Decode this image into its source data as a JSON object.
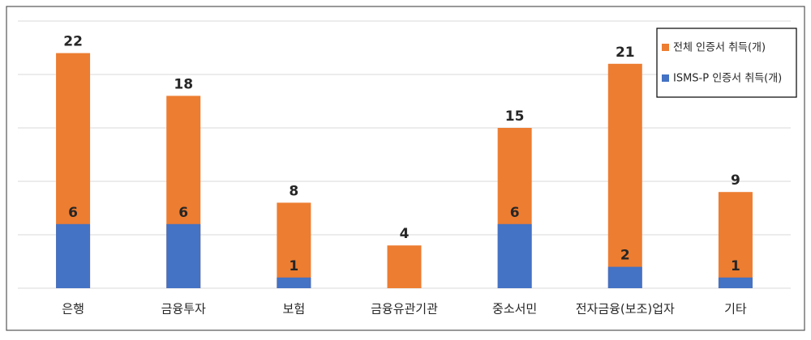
{
  "chart_data": {
    "type": "bar",
    "categories": [
      "은행",
      "금융투자",
      "보험",
      "금융유관기관",
      "중소서민",
      "전자금융(보조)업자",
      "기타"
    ],
    "series": [
      {
        "name": "전체 인증서 취득(개)",
        "color": "#ed7d31",
        "values": [
          22,
          18,
          8,
          4,
          15,
          21,
          9
        ]
      },
      {
        "name": "ISMS-P 인증서 취득(개)",
        "color": "#4472c4",
        "values": [
          6,
          6,
          1,
          null,
          6,
          2,
          1
        ]
      }
    ],
    "ylim": [
      0,
      25
    ],
    "yticks": [
      0,
      5,
      10,
      15,
      20,
      25
    ],
    "grid": true,
    "legend": "top-right"
  }
}
